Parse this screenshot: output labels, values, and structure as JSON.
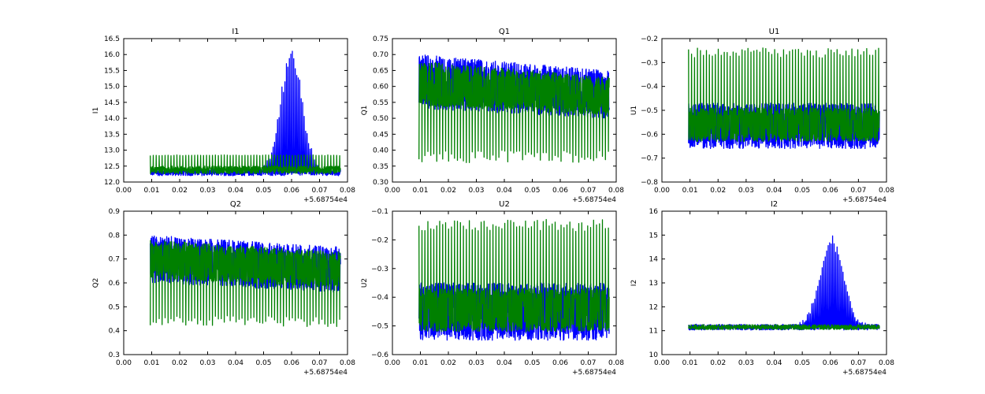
{
  "figure": {
    "series_colors": {
      "blue": "#0000ff",
      "green": "#008000"
    }
  },
  "chart_data": [
    {
      "id": "I1",
      "type": "line",
      "title": "I1",
      "ylabel": "I1",
      "xlim": [
        0.0,
        0.08
      ],
      "ylim": [
        12.0,
        16.5
      ],
      "x_ticks": [
        "0.00",
        "0.01",
        "0.02",
        "0.03",
        "0.04",
        "0.05",
        "0.06",
        "0.07",
        "0.08"
      ],
      "y_ticks": [
        "12.0",
        "12.5",
        "13.0",
        "13.5",
        "14.0",
        "14.5",
        "15.0",
        "15.5",
        "16.0",
        "16.5"
      ],
      "x_offset_label": "+5.68754e4",
      "x_range": [
        0.0095,
        0.0775
      ],
      "series": [
        {
          "color": "blue",
          "base": 12.3,
          "noise": 0.1,
          "peak": {
            "center": 0.06,
            "width": 0.0055,
            "height": 4.0
          }
        },
        {
          "color": "green",
          "base": 12.38,
          "noise": 0.12,
          "spike_to": 12.85
        }
      ]
    },
    {
      "id": "Q1",
      "type": "line",
      "title": "Q1",
      "ylabel": "Q1",
      "xlim": [
        0.0,
        0.08
      ],
      "ylim": [
        0.3,
        0.75
      ],
      "x_ticks": [
        "0.00",
        "0.01",
        "0.02",
        "0.03",
        "0.04",
        "0.05",
        "0.06",
        "0.07",
        "0.08"
      ],
      "y_ticks": [
        "0.30",
        "0.35",
        "0.40",
        "0.45",
        "0.50",
        "0.55",
        "0.60",
        "0.65",
        "0.70",
        "0.75"
      ],
      "x_offset_label": "+5.68754e4",
      "x_range": [
        0.0095,
        0.0775
      ],
      "series": [
        {
          "color": "blue",
          "band_start": [
            0.53,
            0.7
          ],
          "band_end": [
            0.5,
            0.65
          ]
        },
        {
          "color": "green",
          "band_start": [
            0.54,
            0.68
          ],
          "band_end": [
            0.51,
            0.63
          ],
          "spike_to": 0.38
        }
      ]
    },
    {
      "id": "U1",
      "type": "line",
      "title": "U1",
      "ylabel": "U1",
      "xlim": [
        0.0,
        0.08
      ],
      "ylim": [
        -0.8,
        -0.2
      ],
      "x_ticks": [
        "0.00",
        "0.01",
        "0.02",
        "0.03",
        "0.04",
        "0.05",
        "0.06",
        "0.07",
        "0.08"
      ],
      "y_ticks": [
        "−0.8",
        "−0.7",
        "−0.6",
        "−0.5",
        "−0.4",
        "−0.3",
        "−0.2"
      ],
      "x_offset_label": "+5.68754e4",
      "x_range": [
        0.0095,
        0.0775
      ],
      "series": [
        {
          "color": "blue",
          "band_start": [
            -0.66,
            -0.47
          ],
          "band_end": [
            -0.66,
            -0.47
          ]
        },
        {
          "color": "green",
          "band_start": [
            -0.63,
            -0.49
          ],
          "band_end": [
            -0.63,
            -0.49
          ],
          "spike_to": -0.26
        }
      ]
    },
    {
      "id": "Q2",
      "type": "line",
      "title": "Q2",
      "ylabel": "Q2",
      "xlim": [
        0.0,
        0.08
      ],
      "ylim": [
        0.3,
        0.9
      ],
      "x_ticks": [
        "0.00",
        "0.01",
        "0.02",
        "0.03",
        "0.04",
        "0.05",
        "0.06",
        "0.07",
        "0.08"
      ],
      "y_ticks": [
        "0.3",
        "0.4",
        "0.5",
        "0.6",
        "0.7",
        "0.8",
        "0.9"
      ],
      "x_offset_label": "+5.68754e4",
      "x_range": [
        0.0095,
        0.0775
      ],
      "series": [
        {
          "color": "blue",
          "band_start": [
            0.6,
            0.8
          ],
          "band_end": [
            0.56,
            0.75
          ]
        },
        {
          "color": "green",
          "band_start": [
            0.62,
            0.78
          ],
          "band_end": [
            0.58,
            0.73
          ],
          "spike_to": 0.44
        }
      ]
    },
    {
      "id": "U2",
      "type": "line",
      "title": "U2",
      "ylabel": "U2",
      "xlim": [
        0.0,
        0.08
      ],
      "ylim": [
        -0.6,
        -0.1
      ],
      "x_ticks": [
        "0.00",
        "0.01",
        "0.02",
        "0.03",
        "0.04",
        "0.05",
        "0.06",
        "0.07",
        "0.08"
      ],
      "y_ticks": [
        "−0.6",
        "−0.5",
        "−0.4",
        "−0.3",
        "−0.2",
        "−0.1"
      ],
      "x_offset_label": "+5.68754e4",
      "x_range": [
        0.0095,
        0.0775
      ],
      "series": [
        {
          "color": "blue",
          "band_start": [
            -0.55,
            -0.35
          ],
          "band_end": [
            -0.55,
            -0.35
          ]
        },
        {
          "color": "green",
          "band_start": [
            -0.52,
            -0.37
          ],
          "band_end": [
            -0.52,
            -0.37
          ],
          "spike_to": -0.15
        }
      ]
    },
    {
      "id": "I2",
      "type": "line",
      "title": "I2",
      "ylabel": "I2",
      "xlim": [
        0.0,
        0.08
      ],
      "ylim": [
        10,
        16
      ],
      "x_ticks": [
        "0.00",
        "0.01",
        "0.02",
        "0.03",
        "0.04",
        "0.05",
        "0.06",
        "0.07",
        "0.08"
      ],
      "y_ticks": [
        "10",
        "11",
        "12",
        "13",
        "14",
        "15",
        "16"
      ],
      "x_offset_label": "+5.68754e4",
      "x_range": [
        0.0095,
        0.0775
      ],
      "series": [
        {
          "color": "blue",
          "base": 11.15,
          "noise": 0.12,
          "peak": {
            "center": 0.0605,
            "width": 0.006,
            "height": 3.9
          }
        },
        {
          "color": "green",
          "base": 11.15,
          "noise": 0.1
        }
      ]
    }
  ]
}
